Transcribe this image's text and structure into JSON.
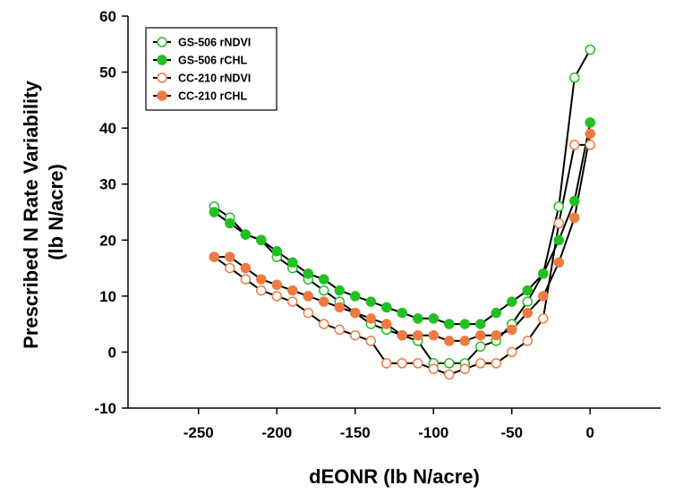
{
  "chart_data": {
    "type": "line",
    "xlabel": "dEONR (lb N/acre)",
    "ylabel_lines": [
      "Prescribed N Rate Variability",
      "(lb N/acre)"
    ],
    "xlim": [
      -295,
      45
    ],
    "ylim": [
      -10,
      60
    ],
    "x_ticks": [
      -250,
      -200,
      -150,
      -100,
      -50,
      0
    ],
    "y_ticks": [
      -10,
      0,
      10,
      20,
      30,
      40,
      50,
      60
    ],
    "grid": false,
    "legend_position": "top-left",
    "series": [
      {
        "name": "GS-506 rNDVI",
        "color": "#22c022",
        "marker": "open-circle",
        "x": [
          -240,
          -230,
          -220,
          -210,
          -200,
          -190,
          -180,
          -170,
          -160,
          -150,
          -140,
          -130,
          -120,
          -110,
          -100,
          -90,
          -80,
          -70,
          -60,
          -50,
          -40,
          -30,
          -20,
          -10,
          0
        ],
        "y": [
          26,
          24,
          21,
          20,
          17,
          15,
          13,
          11,
          9,
          7,
          5,
          4,
          3,
          2,
          -2,
          -2,
          -2,
          1,
          2,
          5,
          9,
          14,
          26,
          49,
          54
        ]
      },
      {
        "name": "GS-506 rCHL",
        "color": "#22c022",
        "marker": "filled-circle",
        "x": [
          -240,
          -230,
          -220,
          -210,
          -200,
          -190,
          -180,
          -170,
          -160,
          -150,
          -140,
          -130,
          -120,
          -110,
          -100,
          -90,
          -80,
          -70,
          -60,
          -50,
          -40,
          -30,
          -20,
          -10,
          0
        ],
        "y": [
          25,
          23,
          21,
          20,
          18,
          16,
          14,
          13,
          11,
          10,
          9,
          8,
          7,
          6,
          6,
          5,
          5,
          5,
          7,
          9,
          11,
          14,
          20,
          27,
          41
        ]
      },
      {
        "name": "CC-210 rNDVI",
        "color": "#ee7a40",
        "marker": "open-circle",
        "x": [
          -240,
          -230,
          -220,
          -210,
          -200,
          -190,
          -180,
          -170,
          -160,
          -150,
          -140,
          -130,
          -120,
          -110,
          -100,
          -90,
          -80,
          -70,
          -60,
          -50,
          -40,
          -30,
          -20,
          -10,
          0
        ],
        "y": [
          17,
          15,
          13,
          11,
          10,
          9,
          7,
          5,
          4,
          3,
          2,
          -2,
          -2,
          -2,
          -3,
          -4,
          -3,
          -2,
          -2,
          0,
          2,
          6,
          23,
          37,
          37
        ]
      },
      {
        "name": "CC-210 rCHL",
        "color": "#ee7a40",
        "marker": "filled-circle",
        "x": [
          -240,
          -230,
          -220,
          -210,
          -200,
          -190,
          -180,
          -170,
          -160,
          -150,
          -140,
          -130,
          -120,
          -110,
          -100,
          -90,
          -80,
          -70,
          -60,
          -50,
          -40,
          -30,
          -20,
          -10,
          0
        ],
        "y": [
          17,
          17,
          15,
          13,
          12,
          11,
          10,
          9,
          8,
          7,
          6,
          5,
          3,
          3,
          3,
          2,
          2,
          3,
          3,
          4,
          7,
          10,
          16,
          24,
          39
        ]
      }
    ]
  }
}
